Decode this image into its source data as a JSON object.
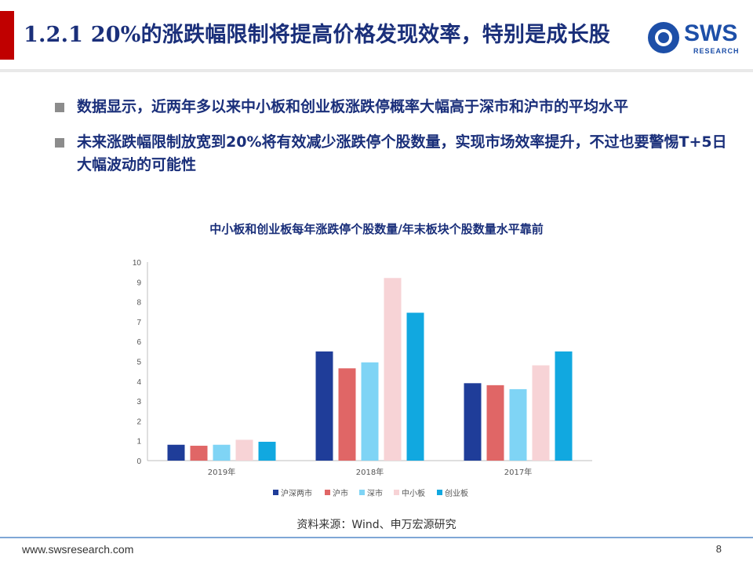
{
  "header": {
    "title": "1.2.1 20%的涨跌幅限制将提高价格发现效率，特别是成长股",
    "logo_text": "SWS",
    "logo_sub": "RESEARCH"
  },
  "bullets": [
    "数据显示，近两年多以来中小板和创业板涨跌停概率大幅高于深市和沪市的平均水平",
    "未来涨跌幅限制放宽到20%将有效减少涨跌停个股数量，实现市场效率提升，不过也要警惕T+5日大幅波动的可能性"
  ],
  "chart_data": {
    "type": "bar",
    "title": "中小板和创业板每年涨跌停个股数量/年末板块个股数量水平靠前",
    "categories": [
      "2019年",
      "2018年",
      "2017年"
    ],
    "series": [
      {
        "name": "沪深两市",
        "color": "#1f3d99",
        "values": [
          0.8,
          5.5,
          3.9
        ]
      },
      {
        "name": "沪市",
        "color": "#e06666",
        "values": [
          0.75,
          4.65,
          3.8
        ]
      },
      {
        "name": "深市",
        "color": "#7fd4f5",
        "values": [
          0.8,
          4.95,
          3.6
        ]
      },
      {
        "name": "中小板",
        "color": "#f7d3d6",
        "values": [
          1.05,
          9.2,
          4.8
        ]
      },
      {
        "name": "创业板",
        "color": "#11a8e0",
        "values": [
          0.95,
          7.45,
          5.5
        ]
      }
    ],
    "ylim": [
      0,
      10
    ],
    "yticks": [
      "0",
      "1",
      "2",
      "3",
      "4",
      "5",
      "6",
      "7",
      "8",
      "9",
      "10"
    ],
    "legend": "bottom",
    "grid": false
  },
  "source": "资料来源：Wind、申万宏源研究",
  "footer": {
    "url": "www.swsresearch.com",
    "page": "8"
  }
}
